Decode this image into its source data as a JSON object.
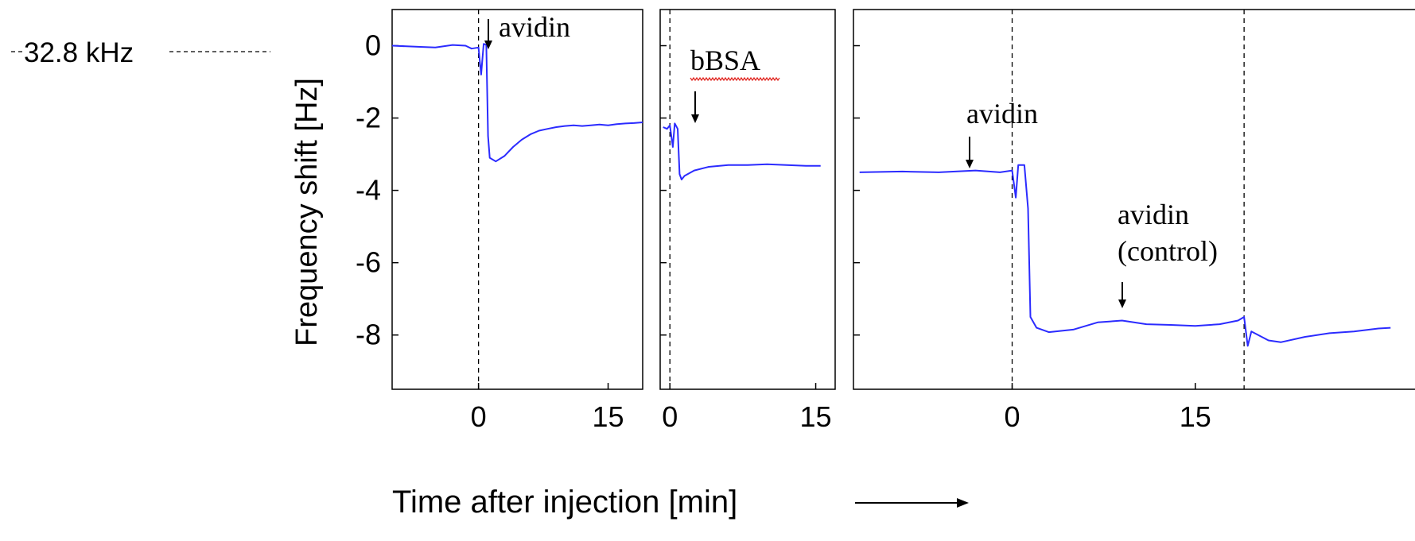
{
  "baseline_label": "32.8 kHz",
  "y_axis_label": "Frequency shift [Hz]",
  "x_axis_label": "Time after injection [min]",
  "colors": {
    "trace": "#2b2bff",
    "axis": "#000000",
    "squiggle": "#e0201a"
  },
  "chart_data": [
    {
      "type": "line",
      "panel": "left",
      "xlim": [
        -10,
        19
      ],
      "ylim": [
        -9.5,
        1
      ],
      "xticks": [
        0,
        15
      ],
      "yticks": [
        0,
        -2,
        -4,
        -6,
        -8
      ],
      "vlines": [
        0
      ],
      "annotations": [
        {
          "text": "avidin",
          "x": 0
        }
      ],
      "series": [
        {
          "values": [
            [
              -10,
              0
            ],
            [
              -7,
              -0.03
            ],
            [
              -5,
              -0.05
            ],
            [
              -3,
              0.02
            ],
            [
              -1.5,
              0
            ],
            [
              -0.8,
              -0.08
            ],
            [
              0,
              -0.05
            ],
            [
              0.3,
              -0.8
            ],
            [
              0.6,
              0.05
            ],
            [
              0.9,
              0.02
            ],
            [
              1.1,
              -2.5
            ],
            [
              1.3,
              -3.1
            ],
            [
              2,
              -3.2
            ],
            [
              3,
              -3.05
            ],
            [
              4,
              -2.8
            ],
            [
              5,
              -2.6
            ],
            [
              6,
              -2.45
            ],
            [
              7,
              -2.35
            ],
            [
              8,
              -2.3
            ],
            [
              9,
              -2.25
            ],
            [
              10,
              -2.22
            ],
            [
              11,
              -2.2
            ],
            [
              12,
              -2.22
            ],
            [
              13,
              -2.2
            ],
            [
              14,
              -2.18
            ],
            [
              15,
              -2.2
            ],
            [
              16,
              -2.17
            ],
            [
              17,
              -2.15
            ],
            [
              18,
              -2.14
            ],
            [
              19,
              -2.12
            ]
          ]
        }
      ]
    },
    {
      "type": "line",
      "panel": "middle",
      "xlim": [
        -1,
        17
      ],
      "ylim": [
        -9.5,
        1
      ],
      "xticks": [
        0,
        15
      ],
      "yticks": [
        0,
        -2,
        -4,
        -6,
        -8
      ],
      "vlines": [
        0
      ],
      "annotations": [
        {
          "text": "bBSA",
          "x": 0
        }
      ],
      "series": [
        {
          "values": [
            [
              -0.7,
              -2.25
            ],
            [
              -0.3,
              -2.3
            ],
            [
              0,
              -2.2
            ],
            [
              0.3,
              -2.8
            ],
            [
              0.5,
              -2.15
            ],
            [
              0.8,
              -2.3
            ],
            [
              1,
              -3.55
            ],
            [
              1.2,
              -3.7
            ],
            [
              1.5,
              -3.6
            ],
            [
              2.5,
              -3.45
            ],
            [
              4,
              -3.35
            ],
            [
              6,
              -3.3
            ],
            [
              8,
              -3.3
            ],
            [
              10,
              -3.28
            ],
            [
              12,
              -3.3
            ],
            [
              14,
              -3.32
            ],
            [
              15.5,
              -3.32
            ]
          ]
        }
      ]
    },
    {
      "type": "line",
      "panel": "right",
      "xlim": [
        -13,
        33
      ],
      "ylim": [
        -9.5,
        1
      ],
      "xticks": [
        0,
        15
      ],
      "yticks": [
        0,
        -2,
        -4,
        -6,
        -8
      ],
      "vlines": [
        0,
        19
      ],
      "annotations": [
        {
          "text": "avidin",
          "x": 0
        },
        {
          "text": "avidin\n(control)",
          "x": 19
        }
      ],
      "series": [
        {
          "values": [
            [
              -12.5,
              -3.5
            ],
            [
              -9,
              -3.48
            ],
            [
              -6,
              -3.5
            ],
            [
              -3,
              -3.45
            ],
            [
              -1,
              -3.5
            ],
            [
              0,
              -3.45
            ],
            [
              0.3,
              -4.2
            ],
            [
              0.5,
              -3.3
            ],
            [
              1,
              -3.3
            ],
            [
              1.3,
              -4.5
            ],
            [
              1.5,
              -7.5
            ],
            [
              2,
              -7.8
            ],
            [
              3,
              -7.92
            ],
            [
              5,
              -7.85
            ],
            [
              7,
              -7.65
            ],
            [
              9,
              -7.6
            ],
            [
              11,
              -7.7
            ],
            [
              13,
              -7.72
            ],
            [
              15,
              -7.75
            ],
            [
              17,
              -7.7
            ],
            [
              18.5,
              -7.6
            ],
            [
              19,
              -7.5
            ],
            [
              19.3,
              -8.3
            ],
            [
              19.6,
              -7.9
            ],
            [
              21,
              -8.15
            ],
            [
              22,
              -8.2
            ],
            [
              24,
              -8.05
            ],
            [
              26,
              -7.95
            ],
            [
              28,
              -7.9
            ],
            [
              30,
              -7.82
            ],
            [
              31,
              -7.8
            ]
          ]
        }
      ]
    }
  ]
}
